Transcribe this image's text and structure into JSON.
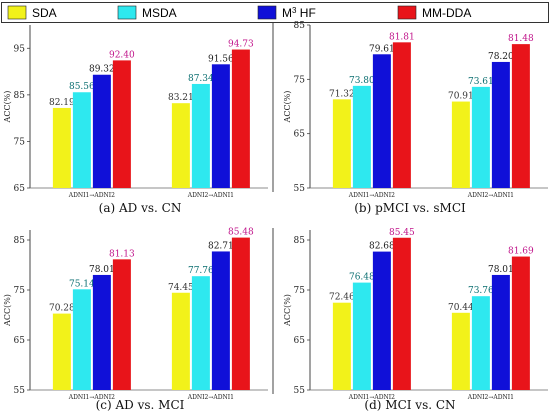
{
  "legend": [
    {
      "label": "SDA",
      "color": "#f2f21a"
    },
    {
      "label": "MSDA",
      "color": "#2ee8ef"
    },
    {
      "label": "M",
      "sup": "3",
      "label_rest": " HF",
      "color": "#1010d8"
    },
    {
      "label": "MM-DDA",
      "color": "#e8141a"
    }
  ],
  "chart_data": [
    {
      "type": "bar",
      "caption": "(a) AD vs. CN",
      "ylabel": "ACC(%)",
      "ylim": [
        65,
        100
      ],
      "yticks": [
        65,
        75,
        85,
        95
      ],
      "categories": [
        "ADNI1→ADNI2",
        "ADNI2→ADNI1"
      ],
      "series": [
        {
          "name": "SDA",
          "values": [
            82.19,
            83.21
          ]
        },
        {
          "name": "MSDA",
          "values": [
            85.56,
            87.34
          ]
        },
        {
          "name": "M³ HF",
          "values": [
            89.32,
            91.56
          ]
        },
        {
          "name": "MM-DDA",
          "values": [
            92.4,
            94.73
          ]
        }
      ],
      "value_labels": [
        [
          "82.19",
          "85.56",
          "89.32",
          "92.40"
        ],
        [
          "83.21",
          "87.34",
          "91.56",
          "94.73"
        ]
      ]
    },
    {
      "type": "bar",
      "caption": "(b) pMCI vs. sMCI",
      "ylabel": "ACC(%)",
      "ylim": [
        55,
        85
      ],
      "yticks": [
        55,
        65,
        75,
        85
      ],
      "categories": [
        "ADNI1→ADNI2",
        "ADNI2→ADNI1"
      ],
      "series": [
        {
          "name": "SDA",
          "values": [
            71.32,
            70.91
          ]
        },
        {
          "name": "MSDA",
          "values": [
            73.8,
            73.61
          ]
        },
        {
          "name": "M³ HF",
          "values": [
            79.61,
            78.2
          ]
        },
        {
          "name": "MM-DDA",
          "values": [
            81.81,
            81.48
          ]
        }
      ],
      "value_labels": [
        [
          "71.32",
          "73.80",
          "79.61",
          "81.81"
        ],
        [
          "70.91",
          "73.61",
          "78.20",
          "81.48"
        ]
      ]
    },
    {
      "type": "bar",
      "caption": "(c) AD vs. MCI",
      "ylabel": "ACC(%)",
      "ylim": [
        55,
        87
      ],
      "yticks": [
        55,
        65,
        75,
        85
      ],
      "categories": [
        "ADNI1→ADNI2",
        "ADNI2→ADNI1"
      ],
      "series": [
        {
          "name": "SDA",
          "values": [
            70.28,
            74.45
          ]
        },
        {
          "name": "MSDA",
          "values": [
            75.14,
            77.76
          ]
        },
        {
          "name": "M³ HF",
          "values": [
            78.01,
            82.71
          ]
        },
        {
          "name": "MM-DDA",
          "values": [
            81.13,
            85.48
          ]
        }
      ],
      "value_labels": [
        [
          "70.28",
          "75.14",
          "78.01",
          "81.13"
        ],
        [
          "74.45",
          "77.76",
          "82.71",
          "85.48"
        ]
      ]
    },
    {
      "type": "bar",
      "caption": "(d) MCI vs. CN",
      "ylabel": "ACC(%)",
      "ylim": [
        55,
        87
      ],
      "yticks": [
        55,
        65,
        75,
        85
      ],
      "categories": [
        "ADNI1→ADNI2",
        "ADNI2→ADNI1"
      ],
      "series": [
        {
          "name": "SDA",
          "values": [
            72.46,
            70.44
          ]
        },
        {
          "name": "MSDA",
          "values": [
            76.48,
            73.76
          ]
        },
        {
          "name": "M³ HF",
          "values": [
            82.68,
            78.01
          ]
        },
        {
          "name": "MM-DDA",
          "values": [
            85.45,
            81.69
          ]
        }
      ],
      "value_labels": [
        [
          "72.46",
          "76.48",
          "82.68",
          "85.45"
        ],
        [
          "70.44",
          "73.76",
          "78.01",
          "81.69"
        ]
      ]
    }
  ]
}
